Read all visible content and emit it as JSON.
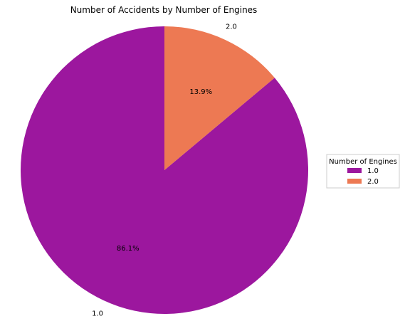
{
  "chart_data": {
    "type": "pie",
    "title": "Number of Accidents by Number of Engines",
    "categories": [
      "1.0",
      "2.0"
    ],
    "values": [
      86.1,
      13.9
    ],
    "percent_labels": [
      "86.1%",
      "13.9%"
    ],
    "colors": [
      "#9c179e",
      "#ed7953"
    ],
    "start_angle_deg": 90,
    "direction": "counterclockwise",
    "legend": {
      "title": "Number of Engines",
      "entries": [
        "1.0",
        "2.0"
      ],
      "placement": "right"
    }
  }
}
